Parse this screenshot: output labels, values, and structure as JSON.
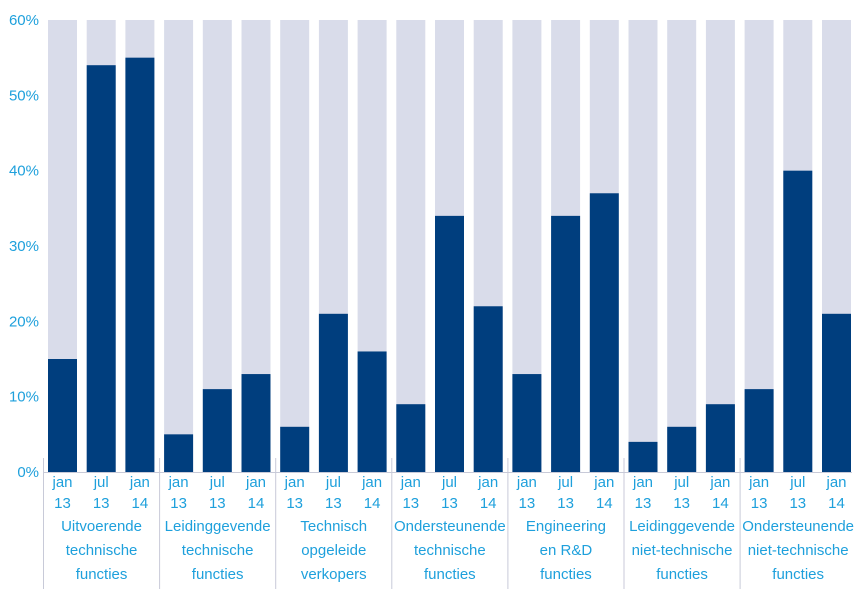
{
  "chart_data": {
    "type": "bar",
    "stacked_background": true,
    "ylim": [
      0,
      60
    ],
    "y_ticks": [
      "0%",
      "10%",
      "20%",
      "30%",
      "40%",
      "50%",
      "60%"
    ],
    "grid": false,
    "colors": {
      "value": "#003e7e",
      "background": "#d9dcea",
      "labels": "#1ea0dc"
    },
    "groups": [
      {
        "label": [
          "Uitvoerende",
          "technische",
          "functies"
        ],
        "bars": [
          {
            "period": [
              "jan",
              "13"
            ],
            "value": 15
          },
          {
            "period": [
              "jul",
              "13"
            ],
            "value": 54
          },
          {
            "period": [
              "jan",
              "14"
            ],
            "value": 55
          }
        ]
      },
      {
        "label": [
          "Leidinggevende",
          "technische",
          "functies"
        ],
        "bars": [
          {
            "period": [
              "jan",
              "13"
            ],
            "value": 5
          },
          {
            "period": [
              "jul",
              "13"
            ],
            "value": 11
          },
          {
            "period": [
              "jan",
              "14"
            ],
            "value": 13
          }
        ]
      },
      {
        "label": [
          "Technisch",
          "opgeleide",
          "verkopers"
        ],
        "bars": [
          {
            "period": [
              "jan",
              "13"
            ],
            "value": 6
          },
          {
            "period": [
              "jul",
              "13"
            ],
            "value": 21
          },
          {
            "period": [
              "jan",
              "14"
            ],
            "value": 16
          }
        ]
      },
      {
        "label": [
          "Ondersteunende",
          "technische",
          "functies"
        ],
        "bars": [
          {
            "period": [
              "jan",
              "13"
            ],
            "value": 9
          },
          {
            "period": [
              "jul",
              "13"
            ],
            "value": 34
          },
          {
            "period": [
              "jan",
              "14"
            ],
            "value": 22
          }
        ]
      },
      {
        "label": [
          "Engineering",
          "en R&D",
          "functies"
        ],
        "bars": [
          {
            "period": [
              "jan",
              "13"
            ],
            "value": 13
          },
          {
            "period": [
              "jul",
              "13"
            ],
            "value": 34
          },
          {
            "period": [
              "jan",
              "14"
            ],
            "value": 37
          }
        ]
      },
      {
        "label": [
          "Leidinggevende",
          "niet-technische",
          "functies"
        ],
        "bars": [
          {
            "period": [
              "jan",
              "13"
            ],
            "value": 4
          },
          {
            "period": [
              "jul",
              "13"
            ],
            "value": 6
          },
          {
            "period": [
              "jan",
              "14"
            ],
            "value": 9
          }
        ]
      },
      {
        "label": [
          "Ondersteunende",
          "niet-technische",
          "functies"
        ],
        "bars": [
          {
            "period": [
              "jan",
              "13"
            ],
            "value": 11
          },
          {
            "period": [
              "jul",
              "13"
            ],
            "value": 40
          },
          {
            "period": [
              "jan",
              "14"
            ],
            "value": 21
          }
        ]
      }
    ]
  }
}
